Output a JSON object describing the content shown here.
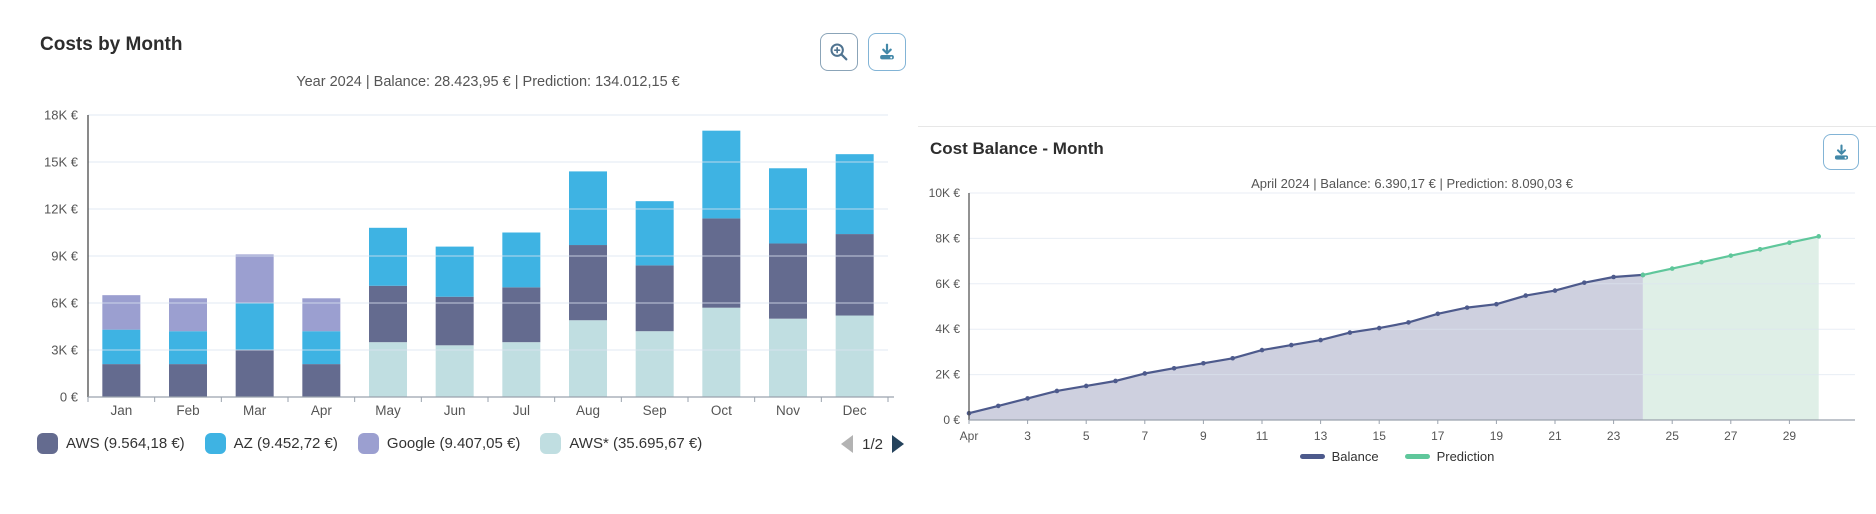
{
  "panels": {
    "left": {
      "title": "Costs by Month",
      "buttons": {
        "zoom": "magnifier-plus-icon",
        "download": "download-tray-icon"
      },
      "legend": {
        "items": [
          {
            "label": "AWS (9.564,18 €)",
            "color_key": "navy"
          },
          {
            "label": "AZ (9.452,72 €)",
            "color_key": "cyan"
          },
          {
            "label": "Google (9.407,05 €)",
            "color_key": "purple"
          },
          {
            "label": "AWS* (35.695,67 €)",
            "color_key": "teal"
          }
        ],
        "pagination": {
          "label": "1/2",
          "prev_icon": "left-triangle",
          "next_icon": "right-triangle"
        }
      }
    },
    "right": {
      "title": "Cost Balance - Month",
      "buttons": {
        "download": "download-tray-icon"
      },
      "legend": {
        "items": [
          {
            "label": "Balance",
            "color": "#4d5a8c"
          },
          {
            "label": "Prediction",
            "color": "#5fc79b"
          }
        ]
      }
    }
  },
  "colors": {
    "navy": "#646b8f",
    "cyan": "#3eb3e3",
    "purple": "#9b9fd0",
    "teal": "#c0dee1",
    "balance_line": "#4d5a8c",
    "balance_fill": "#c9cbdb",
    "prediction_line": "#5fc79b",
    "prediction_fill": "#dcede4",
    "grid": "#dbe3f0",
    "axis_text": "#5a5a5a",
    "axis_line": "#4a4a4a",
    "baseline": "#9aa2ad"
  },
  "chart_data": [
    {
      "type": "bar",
      "stacked": true,
      "title": "Costs by Month",
      "subtitle": "Year 2024 | Balance: 28.423,95 € | Prediction: 134.012,15 €",
      "unit": "K€",
      "ylim": [
        0,
        18
      ],
      "yticks": [
        {
          "value": 18,
          "label": "18K €"
        },
        {
          "value": 15,
          "label": "15K €"
        },
        {
          "value": 12,
          "label": "12K €"
        },
        {
          "value": 9,
          "label": "9K €"
        },
        {
          "value": 6,
          "label": "6K €"
        },
        {
          "value": 3,
          "label": "3K €"
        },
        {
          "value": 0,
          "label": "0 €"
        }
      ],
      "categories": [
        "Jan",
        "Feb",
        "Mar",
        "Apr",
        "May",
        "Jun",
        "Jul",
        "Aug",
        "Sep",
        "Oct",
        "Nov",
        "Dec"
      ],
      "stacks": [
        {
          "month": "Jan",
          "segments": [
            {
              "color_key": "navy",
              "value": 2.1
            },
            {
              "color_key": "cyan",
              "value": 2.2
            },
            {
              "color_key": "purple",
              "value": 2.2
            }
          ]
        },
        {
          "month": "Feb",
          "segments": [
            {
              "color_key": "navy",
              "value": 2.1
            },
            {
              "color_key": "cyan",
              "value": 2.1
            },
            {
              "color_key": "purple",
              "value": 2.1
            }
          ]
        },
        {
          "month": "Mar",
          "segments": [
            {
              "color_key": "navy",
              "value": 3.0
            },
            {
              "color_key": "cyan",
              "value": 3.0
            },
            {
              "color_key": "purple",
              "value": 3.1
            }
          ]
        },
        {
          "month": "Apr",
          "segments": [
            {
              "color_key": "navy",
              "value": 2.1
            },
            {
              "color_key": "cyan",
              "value": 2.1
            },
            {
              "color_key": "purple",
              "value": 2.1
            }
          ]
        },
        {
          "month": "May",
          "segments": [
            {
              "color_key": "teal",
              "value": 3.5
            },
            {
              "color_key": "navy",
              "value": 3.6
            },
            {
              "color_key": "cyan",
              "value": 3.7
            }
          ]
        },
        {
          "month": "Jun",
          "segments": [
            {
              "color_key": "teal",
              "value": 3.3
            },
            {
              "color_key": "navy",
              "value": 3.1
            },
            {
              "color_key": "cyan",
              "value": 3.2
            }
          ]
        },
        {
          "month": "Jul",
          "segments": [
            {
              "color_key": "teal",
              "value": 3.5
            },
            {
              "color_key": "navy",
              "value": 3.5
            },
            {
              "color_key": "cyan",
              "value": 3.5
            }
          ]
        },
        {
          "month": "Aug",
          "segments": [
            {
              "color_key": "teal",
              "value": 4.9
            },
            {
              "color_key": "navy",
              "value": 4.8
            },
            {
              "color_key": "cyan",
              "value": 4.7
            }
          ]
        },
        {
          "month": "Sep",
          "segments": [
            {
              "color_key": "teal",
              "value": 4.2
            },
            {
              "color_key": "navy",
              "value": 4.2
            },
            {
              "color_key": "cyan",
              "value": 4.1
            }
          ]
        },
        {
          "month": "Oct",
          "segments": [
            {
              "color_key": "teal",
              "value": 5.7
            },
            {
              "color_key": "navy",
              "value": 5.7
            },
            {
              "color_key": "cyan",
              "value": 5.6
            }
          ]
        },
        {
          "month": "Nov",
          "segments": [
            {
              "color_key": "teal",
              "value": 5.0
            },
            {
              "color_key": "navy",
              "value": 4.8
            },
            {
              "color_key": "cyan",
              "value": 4.8
            }
          ]
        },
        {
          "month": "Dec",
          "segments": [
            {
              "color_key": "teal",
              "value": 5.2
            },
            {
              "color_key": "navy",
              "value": 5.2
            },
            {
              "color_key": "cyan",
              "value": 5.1
            }
          ]
        }
      ]
    },
    {
      "type": "area",
      "title": "Cost Balance - Month",
      "subtitle": "April 2024 | Balance: 6.390,17 € | Prediction: 8.090,03 €",
      "unit": "K€",
      "ylim": [
        0,
        10
      ],
      "yticks": [
        {
          "value": 10,
          "label": "10K €"
        },
        {
          "value": 8,
          "label": "8K €"
        },
        {
          "value": 6,
          "label": "6K €"
        },
        {
          "value": 4,
          "label": "4K €"
        },
        {
          "value": 2,
          "label": "2K €"
        },
        {
          "value": 0,
          "label": "0 €"
        }
      ],
      "xticks": [
        {
          "day": 1,
          "label": "Apr"
        },
        {
          "day": 3,
          "label": "3"
        },
        {
          "day": 5,
          "label": "5"
        },
        {
          "day": 7,
          "label": "7"
        },
        {
          "day": 9,
          "label": "9"
        },
        {
          "day": 11,
          "label": "11"
        },
        {
          "day": 13,
          "label": "13"
        },
        {
          "day": 15,
          "label": "15"
        },
        {
          "day": 17,
          "label": "17"
        },
        {
          "day": 19,
          "label": "19"
        },
        {
          "day": 21,
          "label": "21"
        },
        {
          "day": 23,
          "label": "23"
        },
        {
          "day": 25,
          "label": "25"
        },
        {
          "day": 27,
          "label": "27"
        },
        {
          "day": 29,
          "label": "29"
        }
      ],
      "series": [
        {
          "name": "Balance",
          "line_color_key": "balance_line",
          "fill_color_key": "balance_fill",
          "days": [
            1,
            2,
            3,
            4,
            5,
            6,
            7,
            8,
            9,
            10,
            11,
            12,
            13,
            14,
            15,
            16,
            17,
            18,
            19,
            20,
            21,
            22,
            23,
            24
          ],
          "values": [
            0.3,
            0.62,
            0.95,
            1.28,
            1.5,
            1.72,
            2.05,
            2.28,
            2.5,
            2.72,
            3.08,
            3.3,
            3.52,
            3.85,
            4.05,
            4.3,
            4.68,
            4.95,
            5.1,
            5.48,
            5.7,
            6.05,
            6.3,
            6.39
          ]
        },
        {
          "name": "Prediction",
          "line_color_key": "prediction_line",
          "fill_color_key": "prediction_fill",
          "days": [
            24,
            25,
            26,
            27,
            28,
            29,
            30
          ],
          "values": [
            6.39,
            6.67,
            6.95,
            7.24,
            7.52,
            7.81,
            8.09
          ]
        }
      ]
    }
  ]
}
